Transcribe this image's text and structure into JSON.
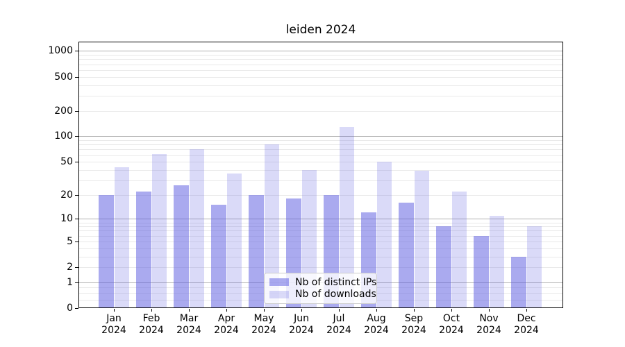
{
  "chart_data": {
    "type": "bar",
    "title": "leiden 2024",
    "categories": [
      "Jan 2024",
      "Feb 2024",
      "Mar 2024",
      "Apr 2024",
      "May 2024",
      "Jun 2024",
      "Jul 2024",
      "Aug 2024",
      "Sep 2024",
      "Oct 2024",
      "Nov 2024",
      "Dec 2024"
    ],
    "series": [
      {
        "name": "Nb of distinct IPs",
        "values": [
          20,
          22,
          26,
          15,
          20,
          18,
          20,
          12,
          16,
          8,
          6,
          3
        ],
        "fill": "rgba(85,85,224,0.5)",
        "approx_solid": "#aaaaef"
      },
      {
        "name": "Nb of downloads",
        "values": [
          43,
          62,
          70,
          36,
          80,
          40,
          130,
          50,
          39,
          22,
          11,
          8
        ],
        "fill": "rgba(85,85,224,0.22)",
        "approx_solid": "#dadaf8"
      }
    ],
    "yscale": "log1p",
    "y_ticks": [
      0,
      1,
      2,
      5,
      10,
      20,
      50,
      100,
      200,
      500,
      1000
    ],
    "ylim": [
      0,
      1290
    ],
    "xlabel": "",
    "ylabel": "",
    "grid": true,
    "legend_position": "bottom-center"
  },
  "colors": {
    "grid_minor": "#e9e9e9",
    "grid_major": "#b0b0b0",
    "axis": "#000000",
    "text": "#000000",
    "legend_border": "#cccccc",
    "legend_bg": "rgba(255,255,255,0.8)"
  }
}
